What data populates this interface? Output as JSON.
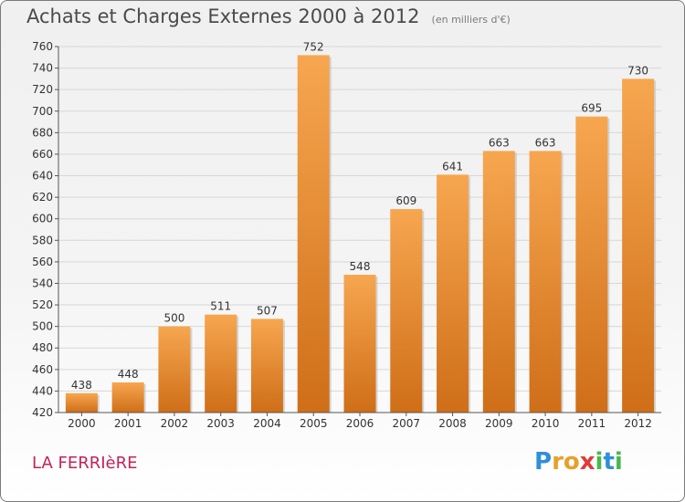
{
  "chart_data": {
    "type": "bar",
    "title": "Achats et Charges Externes 2000 à 2012",
    "subtitle": "(en milliers d'€)",
    "categories": [
      "2000",
      "2001",
      "2002",
      "2003",
      "2004",
      "2005",
      "2006",
      "2007",
      "2008",
      "2009",
      "2010",
      "2011",
      "2012"
    ],
    "values": [
      438,
      448,
      500,
      511,
      507,
      752,
      548,
      609,
      641,
      663,
      663,
      695,
      730
    ],
    "ylim": [
      420,
      760
    ],
    "ytick_step": 20,
    "grid": true,
    "xlabel": "",
    "ylabel": ""
  },
  "place": {
    "name": "LA FERRIèRE"
  },
  "brand": {
    "letters": [
      "P",
      "r",
      "o",
      "x",
      "i",
      "t",
      "i"
    ],
    "colors": [
      "#2f8fd8",
      "#e8a02a",
      "#e8a02a",
      "#e23a3a",
      "#49b84a",
      "#2f8fd8",
      "#49b84a"
    ]
  },
  "colors": {
    "bar_top": "#f7a650",
    "bar_bottom": "#cf6e18",
    "grid": "#d7d7d7",
    "axis": "#555555",
    "label": "#333333"
  }
}
